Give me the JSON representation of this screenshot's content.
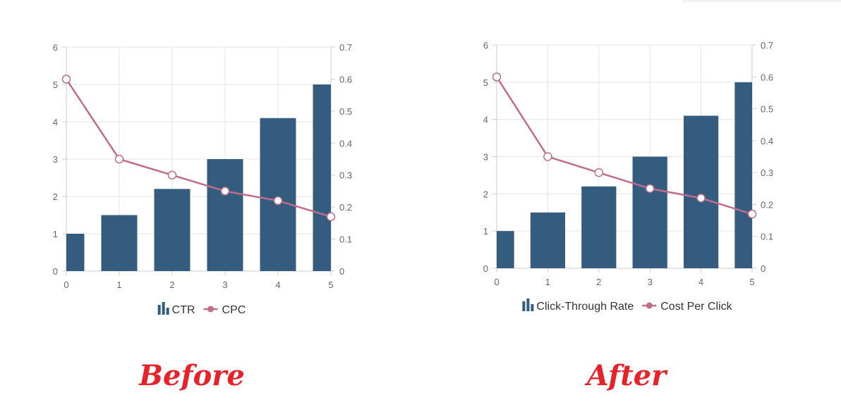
{
  "captions": {
    "before": "Before",
    "after": "After"
  },
  "colors": {
    "bar": "#345c7e",
    "line": "#c06c8b",
    "grid": "#e4e4e4",
    "axis": "#cccccc"
  },
  "chart_data": [
    {
      "type": "bar",
      "title": "",
      "x": [
        0,
        1,
        2,
        3,
        4,
        5
      ],
      "xlim": [
        0,
        5
      ],
      "y_left_ticks": [
        0,
        1,
        2,
        3,
        4,
        5,
        6
      ],
      "y_right_ticks": [
        0,
        0.1,
        0.2,
        0.3,
        0.4,
        0.5,
        0.6,
        0.7
      ],
      "ylim_left": [
        0,
        6
      ],
      "ylim_right": [
        0,
        0.7
      ],
      "grid": true,
      "legend_position": "bottom",
      "series": [
        {
          "name": "CTR",
          "type": "bar",
          "axis": "left",
          "values": [
            1,
            1.5,
            2.2,
            3,
            4.1,
            5
          ]
        },
        {
          "name": "CPC",
          "type": "line",
          "axis": "right",
          "values": [
            0.6,
            0.35,
            0.3,
            0.25,
            0.22,
            0.17
          ]
        }
      ]
    },
    {
      "type": "bar",
      "title": "",
      "x": [
        0,
        1,
        2,
        3,
        4,
        5
      ],
      "xlim": [
        0,
        5
      ],
      "y_left_ticks": [
        0,
        1,
        2,
        3,
        4,
        5,
        6
      ],
      "y_right_ticks": [
        0,
        0.1,
        0.2,
        0.3,
        0.4,
        0.5,
        0.6,
        0.7
      ],
      "ylim_left": [
        0,
        6
      ],
      "ylim_right": [
        0,
        0.7
      ],
      "grid": true,
      "legend_position": "bottom",
      "series": [
        {
          "name": "Click-Through Rate",
          "type": "bar",
          "axis": "left",
          "values": [
            1,
            1.5,
            2.2,
            3,
            4.1,
            5
          ]
        },
        {
          "name": "Cost Per Click",
          "type": "line",
          "axis": "right",
          "values": [
            0.6,
            0.35,
            0.3,
            0.25,
            0.22,
            0.17
          ]
        }
      ]
    }
  ]
}
